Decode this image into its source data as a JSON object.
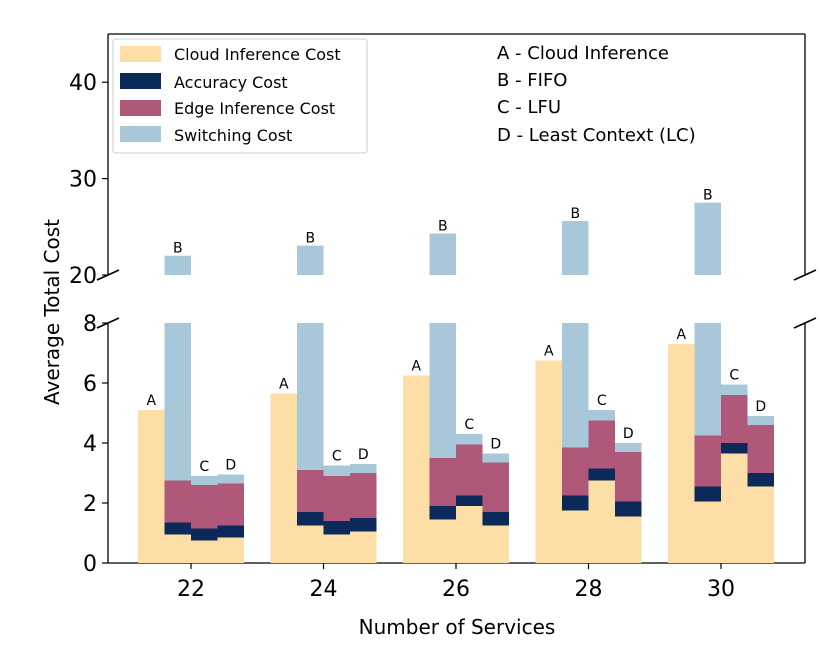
{
  "chart_data": {
    "type": "bar",
    "stacked": true,
    "broken_y_axis": true,
    "xlabel": "Number of Services",
    "ylabel": "Average Total Cost",
    "categories": [
      "22",
      "24",
      "26",
      "28",
      "30"
    ],
    "methods": [
      "A",
      "B",
      "C",
      "D"
    ],
    "method_legend": [
      "A - Cloud Inference",
      "B - FIFO",
      "C - LFU",
      "D - Least Context (LC)"
    ],
    "series": [
      {
        "name": "Cloud Inference Cost",
        "color": "#fddea6"
      },
      {
        "name": "Accuracy Cost",
        "color": "#0b2a5a"
      },
      {
        "name": "Edge Inference Cost",
        "color": "#b0587a"
      },
      {
        "name": "Switching Cost",
        "color": "#a8c8da"
      }
    ],
    "values": {
      "22": {
        "A": [
          5.1,
          0,
          0,
          0
        ],
        "B": [
          0.95,
          0.4,
          1.4,
          19.25
        ],
        "C": [
          0.75,
          0.4,
          1.45,
          0.3
        ],
        "D": [
          0.85,
          0.4,
          1.4,
          0.3
        ]
      },
      "24": {
        "A": [
          5.65,
          0,
          0,
          0
        ],
        "B": [
          1.25,
          0.45,
          1.4,
          19.95
        ],
        "C": [
          0.95,
          0.45,
          1.5,
          0.35
        ],
        "D": [
          1.05,
          0.45,
          1.5,
          0.3
        ]
      },
      "26": {
        "A": [
          6.25,
          0,
          0,
          0
        ],
        "B": [
          1.45,
          0.45,
          1.6,
          20.8
        ],
        "C": [
          1.9,
          0.35,
          1.7,
          0.35
        ],
        "D": [
          1.25,
          0.45,
          1.65,
          0.3
        ]
      },
      "28": {
        "A": [
          6.75,
          0,
          0,
          0
        ],
        "B": [
          1.75,
          0.5,
          1.6,
          21.75
        ],
        "C": [
          2.75,
          0.4,
          1.6,
          0.35
        ],
        "D": [
          1.55,
          0.5,
          1.65,
          0.3
        ]
      },
      "30": {
        "A": [
          7.3,
          0,
          0,
          0
        ],
        "B": [
          2.05,
          0.5,
          1.7,
          23.25
        ],
        "C": [
          3.65,
          0.35,
          1.6,
          0.35
        ],
        "D": [
          2.55,
          0.45,
          1.6,
          0.3
        ]
      }
    },
    "lower_ylim": [
      0,
      8
    ],
    "upper_ylim": [
      20,
      45
    ],
    "lower_yticks": [
      0,
      2,
      4,
      6,
      8
    ],
    "upper_yticks": [
      20,
      30,
      40
    ],
    "tick_labels": {
      "0": "0",
      "2": "2",
      "4": "4",
      "6": "6",
      "8": "8",
      "20": "20",
      "30": "30",
      "40": "40"
    },
    "upper_labels_method": "B",
    "legend_position": "upper-left"
  }
}
